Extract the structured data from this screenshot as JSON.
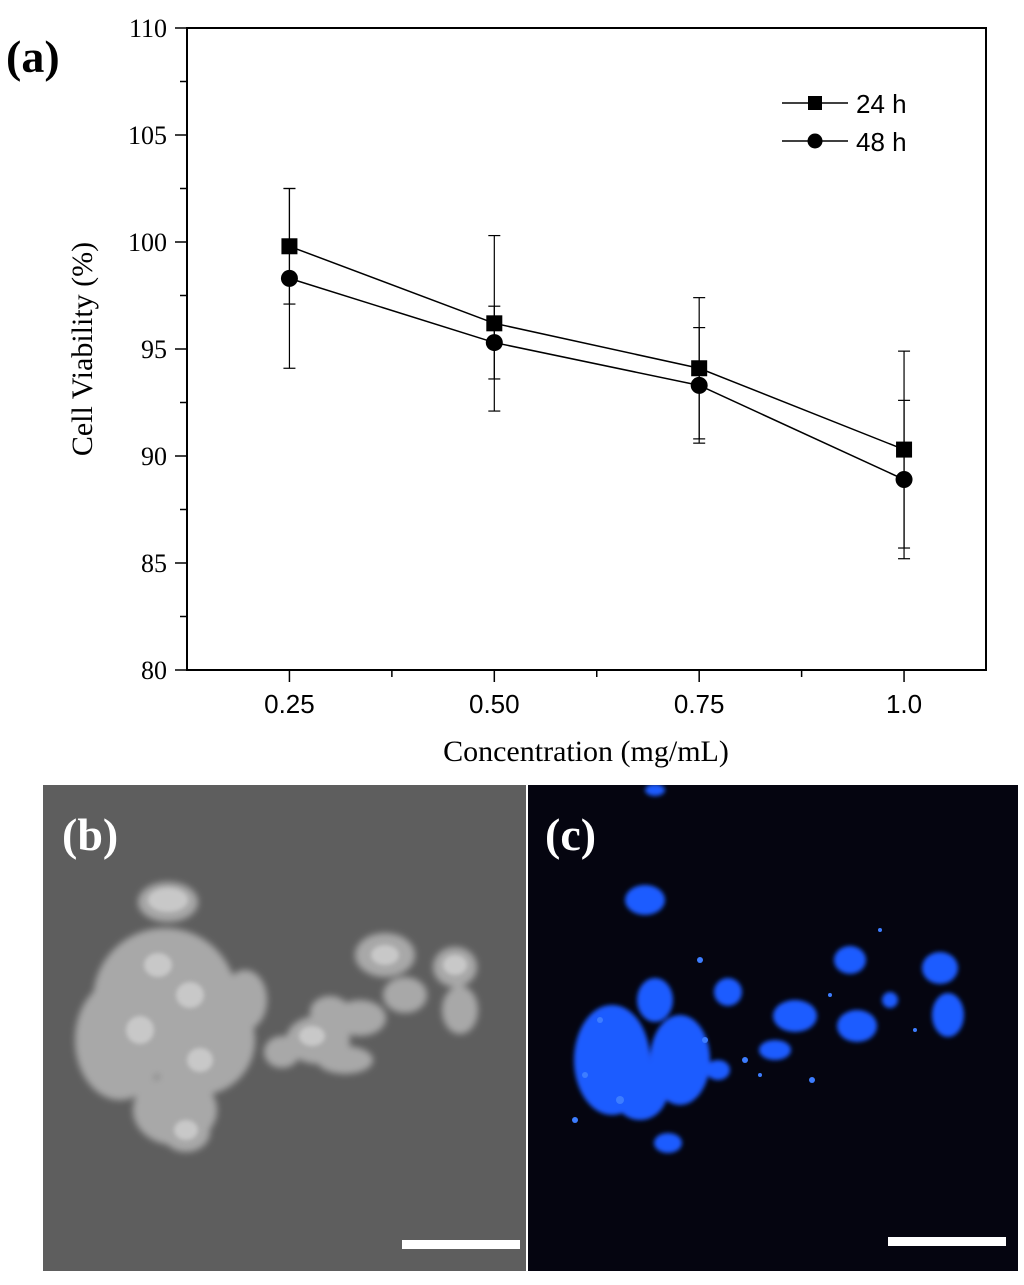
{
  "figure": {
    "panel_a_label": "(a)",
    "panel_b_label": "(b)",
    "panel_c_label": "(c)"
  },
  "chart_data": {
    "type": "line",
    "title": "",
    "xlabel": "Concentration (mg/mL)",
    "ylabel": "Cell Viability (%)",
    "categories": [
      "0.25",
      "0.50",
      "0.75",
      "1.0"
    ],
    "x": [
      0.25,
      0.5,
      0.75,
      1.0
    ],
    "xlim": [
      0.125,
      1.1
    ],
    "ylim": [
      80,
      110
    ],
    "yticks": [
      80,
      85,
      90,
      95,
      100,
      105,
      110
    ],
    "grid": false,
    "legend_position": "top-right",
    "series": [
      {
        "name": "24 h",
        "marker": "square",
        "color": "#000000",
        "values": [
          99.8,
          96.2,
          94.1,
          90.3
        ],
        "error": [
          2.7,
          4.1,
          3.3,
          4.6
        ]
      },
      {
        "name": "48 h",
        "marker": "circle",
        "color": "#000000",
        "values": [
          98.3,
          95.3,
          93.3,
          88.9
        ],
        "error": [
          4.2,
          1.7,
          2.7,
          3.7
        ]
      }
    ]
  },
  "images": {
    "panel_b": {
      "kind": "brightfield micrograph",
      "background": "#5e5e5e",
      "cells": "#b9b9b9",
      "scale_bar": "#ffffff"
    },
    "panel_c": {
      "kind": "fluorescence micrograph",
      "background": "#050510",
      "cells": "#1a5cff",
      "scale_bar": "#ffffff"
    }
  }
}
